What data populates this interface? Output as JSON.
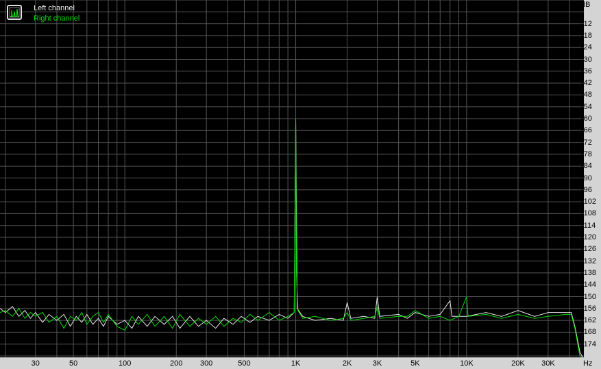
{
  "chart_data": {
    "type": "line",
    "title": "",
    "xlabel": "Hz",
    "ylabel": "dB",
    "x_scale": "log",
    "xlim": [
      18.6,
      49000
    ],
    "ylim": [
      -180,
      0
    ],
    "grid": true,
    "legend_position": "top-left",
    "x_ticks": [
      {
        "value": 30,
        "label": "30"
      },
      {
        "value": 50,
        "label": "50"
      },
      {
        "value": 100,
        "label": "100"
      },
      {
        "value": 200,
        "label": "200"
      },
      {
        "value": 300,
        "label": "300"
      },
      {
        "value": 500,
        "label": "500"
      },
      {
        "value": 1000,
        "label": "1K"
      },
      {
        "value": 2000,
        "label": "2K"
      },
      {
        "value": 3000,
        "label": "3K"
      },
      {
        "value": 5000,
        "label": "5K"
      },
      {
        "value": 10000,
        "label": "10K"
      },
      {
        "value": 20000,
        "label": "20K"
      },
      {
        "value": 30000,
        "label": "30K"
      }
    ],
    "y_ticks": [
      -12,
      -18,
      -24,
      -30,
      -36,
      -42,
      -48,
      -54,
      -60,
      -66,
      -72,
      -78,
      -84,
      -90,
      -96,
      -102,
      -108,
      -114,
      -120,
      -126,
      -132,
      -138,
      -144,
      -150,
      -156,
      -162,
      -168,
      -174
    ],
    "series": [
      {
        "name": "Left channel",
        "color": "#e8e8e8",
        "points": [
          [
            18.6,
            -156
          ],
          [
            20,
            -158
          ],
          [
            22,
            -155
          ],
          [
            24,
            -160
          ],
          [
            26,
            -157
          ],
          [
            28,
            -161
          ],
          [
            30,
            -158
          ],
          [
            33,
            -163
          ],
          [
            36,
            -159
          ],
          [
            40,
            -162
          ],
          [
            44,
            -159
          ],
          [
            48,
            -165
          ],
          [
            52,
            -160
          ],
          [
            56,
            -163
          ],
          [
            60,
            -159
          ],
          [
            65,
            -164
          ],
          [
            70,
            -161
          ],
          [
            75,
            -165
          ],
          [
            80,
            -160
          ],
          [
            90,
            -164
          ],
          [
            100,
            -162
          ],
          [
            110,
            -166
          ],
          [
            120,
            -160
          ],
          [
            135,
            -165
          ],
          [
            150,
            -160
          ],
          [
            170,
            -164
          ],
          [
            190,
            -160
          ],
          [
            210,
            -166
          ],
          [
            240,
            -160
          ],
          [
            270,
            -165
          ],
          [
            300,
            -162
          ],
          [
            340,
            -166
          ],
          [
            380,
            -161
          ],
          [
            430,
            -164
          ],
          [
            480,
            -160
          ],
          [
            540,
            -163
          ],
          [
            600,
            -160
          ],
          [
            700,
            -162
          ],
          [
            800,
            -159
          ],
          [
            900,
            -161
          ],
          [
            980,
            -158
          ],
          [
            1000,
            -60
          ],
          [
            1020,
            -156
          ],
          [
            1100,
            -160
          ],
          [
            1300,
            -162
          ],
          [
            1600,
            -161
          ],
          [
            1900,
            -162
          ],
          [
            2000,
            -153
          ],
          [
            2100,
            -161
          ],
          [
            2500,
            -160
          ],
          [
            2900,
            -161
          ],
          [
            3000,
            -150
          ],
          [
            3100,
            -160
          ],
          [
            4000,
            -159
          ],
          [
            4500,
            -161
          ],
          [
            5000,
            -158
          ],
          [
            6000,
            -160
          ],
          [
            7000,
            -159
          ],
          [
            8000,
            -152
          ],
          [
            8200,
            -160
          ],
          [
            10000,
            -160
          ],
          [
            13000,
            -158
          ],
          [
            16000,
            -160
          ],
          [
            20000,
            -157
          ],
          [
            25000,
            -160
          ],
          [
            30000,
            -158
          ],
          [
            38000,
            -158
          ],
          [
            41000,
            -158
          ],
          [
            43000,
            -165
          ],
          [
            46000,
            -178
          ],
          [
            48000,
            -185
          ]
        ]
      },
      {
        "name": "Right channel",
        "color": "#00e000",
        "points": [
          [
            18.6,
            -158
          ],
          [
            20,
            -157
          ],
          [
            22,
            -160
          ],
          [
            24,
            -156
          ],
          [
            26,
            -161
          ],
          [
            28,
            -158
          ],
          [
            30,
            -160
          ],
          [
            33,
            -158
          ],
          [
            36,
            -163
          ],
          [
            40,
            -160
          ],
          [
            44,
            -166
          ],
          [
            48,
            -160
          ],
          [
            52,
            -162
          ],
          [
            56,
            -158
          ],
          [
            60,
            -164
          ],
          [
            65,
            -160
          ],
          [
            70,
            -158
          ],
          [
            75,
            -163
          ],
          [
            80,
            -159
          ],
          [
            90,
            -165
          ],
          [
            100,
            -167
          ],
          [
            110,
            -160
          ],
          [
            120,
            -164
          ],
          [
            135,
            -159
          ],
          [
            150,
            -165
          ],
          [
            170,
            -160
          ],
          [
            190,
            -166
          ],
          [
            210,
            -159
          ],
          [
            240,
            -165
          ],
          [
            270,
            -161
          ],
          [
            300,
            -164
          ],
          [
            340,
            -160
          ],
          [
            380,
            -165
          ],
          [
            430,
            -161
          ],
          [
            480,
            -163
          ],
          [
            540,
            -159
          ],
          [
            600,
            -162
          ],
          [
            700,
            -158
          ],
          [
            800,
            -162
          ],
          [
            900,
            -160
          ],
          [
            980,
            -158
          ],
          [
            1000,
            -60
          ],
          [
            1010,
            -138
          ],
          [
            1030,
            -157
          ],
          [
            1100,
            -161
          ],
          [
            1300,
            -160
          ],
          [
            1600,
            -162
          ],
          [
            1900,
            -161
          ],
          [
            2000,
            -158
          ],
          [
            2100,
            -162
          ],
          [
            2500,
            -161
          ],
          [
            2900,
            -160
          ],
          [
            3000,
            -155
          ],
          [
            3100,
            -161
          ],
          [
            4000,
            -160
          ],
          [
            4500,
            -160
          ],
          [
            5000,
            -157
          ],
          [
            6000,
            -161
          ],
          [
            7000,
            -160
          ],
          [
            8000,
            -162
          ],
          [
            9000,
            -160
          ],
          [
            10000,
            -150
          ],
          [
            10200,
            -160
          ],
          [
            13000,
            -159
          ],
          [
            16000,
            -161
          ],
          [
            20000,
            -159
          ],
          [
            25000,
            -161
          ],
          [
            30000,
            -160
          ],
          [
            38000,
            -159
          ],
          [
            41000,
            -159
          ],
          [
            43000,
            -166
          ],
          [
            46000,
            -180
          ],
          [
            48000,
            -186
          ]
        ]
      }
    ]
  },
  "legend": {
    "left": "Left channel",
    "right": "Right channel",
    "icon": "spectrum-icon"
  }
}
